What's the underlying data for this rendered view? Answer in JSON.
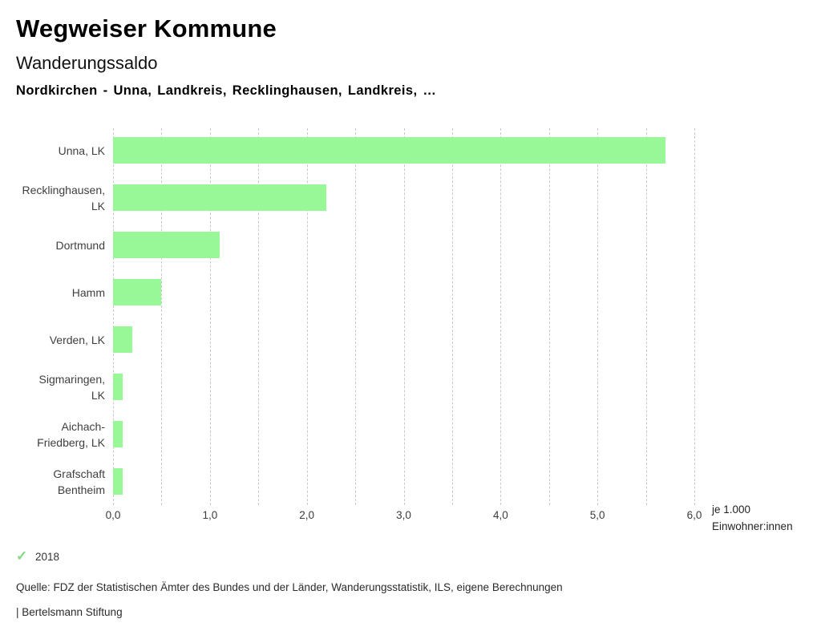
{
  "header": {
    "title": "Wegweiser Kommune",
    "subtitle": "Wanderungssaldo",
    "comparison": "Nordkirchen - Unna, Landkreis, Recklinghausen, Landkreis, …"
  },
  "chart_data": {
    "type": "bar",
    "orientation": "horizontal",
    "title": "Wanderungssaldo",
    "categories": [
      "Unna, LK",
      "Recklinghausen, LK",
      "Dortmund",
      "Hamm",
      "Verden, LK",
      "Sigmaringen, LK",
      "Aichach-Friedberg, LK",
      "Grafschaft Bentheim"
    ],
    "category_lines": [
      [
        "Unna, LK"
      ],
      [
        "Recklinghausen,",
        "LK"
      ],
      [
        "Dortmund"
      ],
      [
        "Hamm"
      ],
      [
        "Verden, LK"
      ],
      [
        "Sigmaringen,",
        "LK"
      ],
      [
        "Aichach-",
        "Friedberg, LK"
      ],
      [
        "Grafschaft",
        "Bentheim"
      ]
    ],
    "values": [
      5.7,
      2.2,
      1.1,
      0.5,
      0.2,
      0.1,
      0.1,
      0.1
    ],
    "series": [
      {
        "name": "2018",
        "values": [
          5.7,
          2.2,
          1.1,
          0.5,
          0.2,
          0.1,
          0.1,
          0.1
        ]
      }
    ],
    "xlim": [
      0,
      6
    ],
    "gridline_step": 0.5,
    "grid": true,
    "x_ticks": [
      0,
      1,
      2,
      3,
      4,
      5,
      6
    ],
    "x_tick_labels": [
      "0,0",
      "1,0",
      "2,0",
      "3,0",
      "4,0",
      "5,0",
      "6,0"
    ],
    "xlabel_lines": [
      "je 1.000",
      "Einwohner:innen"
    ],
    "bar_color": "#98f898",
    "gridline_color": "#c9c9c9",
    "legend": [
      {
        "label": "2018",
        "marker": "check-icon",
        "marker_glyph": "✓",
        "color": "#82d982"
      }
    ],
    "legend_position": "bottom-left"
  },
  "footer": {
    "source": "Quelle: FDZ der Statistischen Ämter des Bundes und der Länder, Wanderungsstatistik, ILS, eigene Berechnungen",
    "brand": "| Bertelsmann Stiftung"
  }
}
